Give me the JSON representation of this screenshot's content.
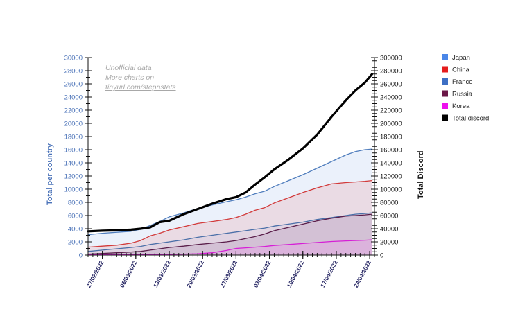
{
  "chart_data": {
    "type": "area",
    "title": "",
    "xlabel": "",
    "ylabel_left": "Total per country",
    "ylabel_right": "Total Discord",
    "ylim_left": [
      0,
      30000
    ],
    "ylim_right": [
      0,
      300000
    ],
    "yticks_left": [
      "0",
      "2000",
      "4000",
      "6000",
      "8000",
      "10000",
      "12000",
      "14000",
      "16000",
      "18000",
      "20000",
      "22000",
      "24000",
      "26000",
      "28000",
      "30000"
    ],
    "yticks_right": [
      "0",
      "20000",
      "40000",
      "60000",
      "80000",
      "100000",
      "120000",
      "140000",
      "160000",
      "180000",
      "200000",
      "220000",
      "240000",
      "260000",
      "280000",
      "300000"
    ],
    "x_start": "24/02/2022",
    "x_end": "24/04/2022",
    "x_days": 60,
    "xtick_labels": [
      "27/02/2022",
      "06/03/2022",
      "13/03/2022",
      "20/03/2022",
      "27/03/2022",
      "03/04/2022",
      "10/04/2022",
      "17/04/2022",
      "24/04/2022"
    ],
    "xtick_days": [
      3,
      10,
      17,
      24,
      31,
      38,
      45,
      52,
      59
    ],
    "x": [
      0,
      3,
      6,
      9,
      11,
      13,
      15,
      17,
      20,
      23,
      26,
      29,
      31,
      33,
      35,
      37,
      39,
      42,
      45,
      48,
      51,
      54,
      56,
      58,
      59.5
    ],
    "series": [
      {
        "name": "Japan",
        "axis": "left",
        "color": "#4a86e8",
        "line_color": "#4f7dbd",
        "fill": "#dbe6f8",
        "values": [
          3100,
          3300,
          3450,
          3600,
          3900,
          4500,
          5100,
          5800,
          6400,
          7100,
          7600,
          8100,
          8400,
          8800,
          9300,
          9700,
          10400,
          11300,
          12200,
          13200,
          14200,
          15200,
          15700,
          16000,
          16100
        ]
      },
      {
        "name": "China",
        "axis": "left",
        "color": "#e51c1c",
        "line_color": "#d23a3a",
        "fill": "#e9c9d2",
        "values": [
          1200,
          1350,
          1500,
          1800,
          2200,
          2900,
          3300,
          3800,
          4300,
          4800,
          5100,
          5400,
          5700,
          6200,
          6800,
          7200,
          7900,
          8700,
          9500,
          10200,
          10800,
          11000,
          11100,
          11200,
          11300
        ]
      },
      {
        "name": "France",
        "axis": "left",
        "color": "#3d6fc4",
        "line_color": "#4a6fa8",
        "fill": "#d9cde0",
        "values": [
          550,
          750,
          950,
          1150,
          1300,
          1600,
          1800,
          2000,
          2300,
          2700,
          3000,
          3300,
          3500,
          3700,
          3900,
          4100,
          4400,
          4700,
          5000,
          5400,
          5700,
          6000,
          6200,
          6300,
          6400
        ]
      },
      {
        "name": "Russia",
        "axis": "left",
        "color": "#6b1747",
        "line_color": "#5a1e4a",
        "fill": "#c9b0cb",
        "values": [
          150,
          250,
          350,
          450,
          550,
          750,
          950,
          1150,
          1350,
          1600,
          1800,
          2000,
          2200,
          2500,
          2800,
          3200,
          3700,
          4200,
          4700,
          5200,
          5600,
          5900,
          6000,
          6100,
          6200
        ]
      },
      {
        "name": "Korea",
        "axis": "left",
        "color": "#ee10ee",
        "line_color": "#d61ed6",
        "fill": "#e2a8e2",
        "values": [
          50,
          60,
          70,
          80,
          90,
          100,
          110,
          130,
          150,
          200,
          350,
          700,
          1000,
          1100,
          1200,
          1300,
          1450,
          1600,
          1750,
          1900,
          2050,
          2150,
          2200,
          2250,
          2300
        ]
      },
      {
        "name": "Total discord",
        "axis": "right",
        "color": "#000000",
        "line_color": "#000000",
        "fill": "none",
        "values": [
          36000,
          37000,
          37500,
          38500,
          40000,
          42000,
          50000,
          52000,
          62000,
          70000,
          78000,
          85000,
          88000,
          95000,
          107000,
          118000,
          130000,
          145000,
          162000,
          183000,
          210000,
          235000,
          250000,
          262000,
          275000
        ]
      }
    ],
    "legend": {
      "placement": "right",
      "entries": [
        "Japan",
        "China",
        "France",
        "Russia",
        "Korea",
        "Total discord"
      ]
    },
    "annotations": [
      "Unofficial data",
      "More charts on",
      "tinyurl.com/stepnstats"
    ],
    "grid": false
  }
}
